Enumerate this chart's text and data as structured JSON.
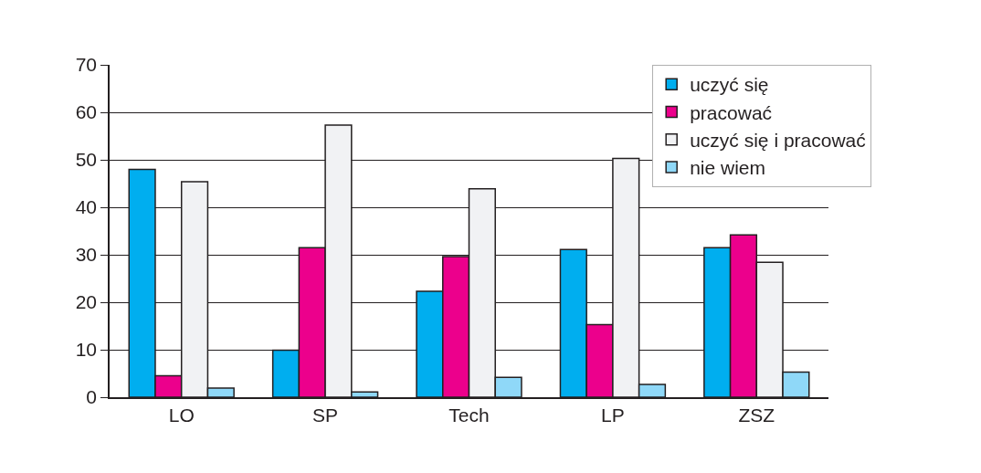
{
  "chart_data": {
    "type": "bar",
    "categories": [
      "LO",
      "SP",
      "Tech",
      "LP",
      "ZSZ"
    ],
    "series": [
      {
        "name": "uczyć się",
        "color": "#00aeef",
        "values": [
          48.0,
          9.9,
          22.3,
          31.1,
          31.5
        ]
      },
      {
        "name": "pracować",
        "color": "#ec008c",
        "values": [
          4.5,
          31.5,
          29.6,
          15.3,
          34.2
        ]
      },
      {
        "name": "uczyć się i pracować",
        "color": "#f1f2f4",
        "values": [
          45.4,
          57.3,
          43.9,
          50.3,
          28.4
        ]
      },
      {
        "name": "nie wiem",
        "color": "#8fd8f8",
        "values": [
          1.9,
          1.1,
          4.2,
          2.7,
          5.3
        ]
      }
    ],
    "ylim": [
      0,
      70
    ],
    "yticks": [
      0,
      10,
      20,
      30,
      40,
      50,
      60,
      70
    ],
    "grid": "y",
    "legend": "top right"
  }
}
